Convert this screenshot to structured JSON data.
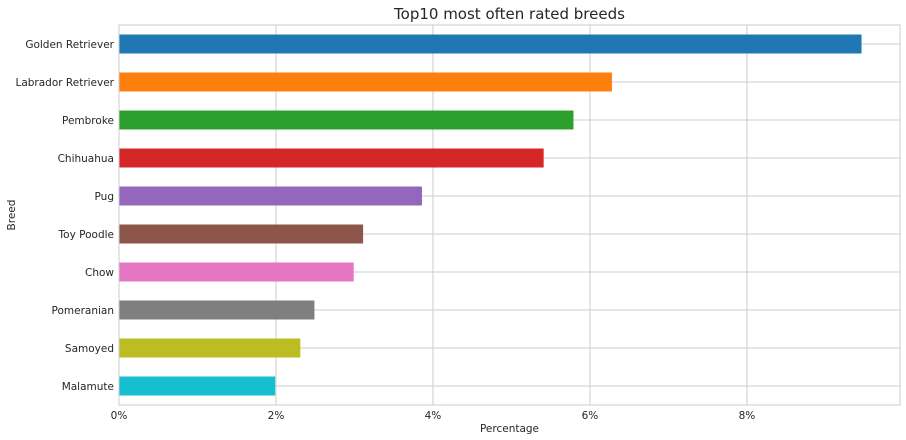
{
  "chart_data": {
    "type": "bar",
    "orientation": "horizontal",
    "title": "Top10 most often rated breeds",
    "xlabel": "Percentage",
    "ylabel": "Breed",
    "categories": [
      "Golden Retriever",
      "Labrador Retriever",
      "Pembroke",
      "Chihuahua",
      "Pug",
      "Toy Poodle",
      "Chow",
      "Pomeranian",
      "Samoyed",
      "Malamute"
    ],
    "values": [
      9.46,
      6.28,
      5.79,
      5.41,
      3.86,
      3.11,
      2.99,
      2.49,
      2.31,
      1.99
    ],
    "colors": [
      "#1f77b4",
      "#ff7f0e",
      "#2ca02c",
      "#d62728",
      "#9467bd",
      "#8c564b",
      "#e377c2",
      "#7f7f7f",
      "#bcbd22",
      "#17becf"
    ],
    "xlim": [
      0,
      9.95
    ],
    "xticks": [
      0,
      2,
      4,
      6,
      8
    ],
    "xtick_labels": [
      "0%",
      "2%",
      "4%",
      "6%",
      "8%"
    ],
    "grid": true,
    "legend": false
  }
}
